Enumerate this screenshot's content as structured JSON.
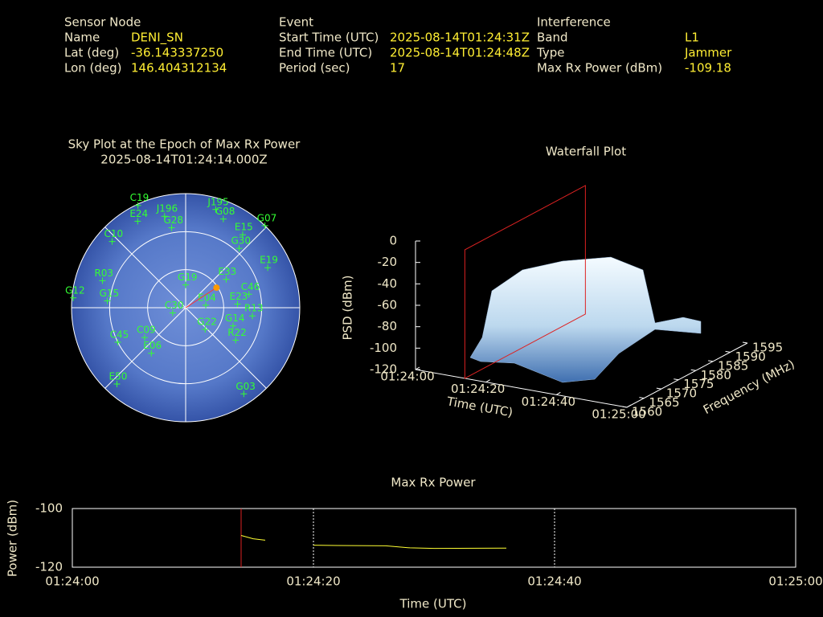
{
  "header": {
    "sensor": {
      "title": "Sensor Node",
      "rows": [
        [
          "Name",
          "DENI_SN"
        ],
        [
          "Lat (deg)",
          "-36.143337250"
        ],
        [
          "Lon (deg)",
          "146.404312134"
        ]
      ]
    },
    "event": {
      "title": "Event",
      "rows": [
        [
          "Start Time (UTC)",
          "2025-08-14T01:24:31Z"
        ],
        [
          "End Time (UTC)",
          "2025-08-14T01:24:48Z"
        ],
        [
          "Period (sec)",
          "17"
        ]
      ]
    },
    "interference": {
      "title": "Interference",
      "rows": [
        [
          "Band",
          "L1"
        ],
        [
          "Type",
          "Jammer"
        ],
        [
          "Max Rx Power (dBm)",
          "-109.18"
        ]
      ]
    }
  },
  "chart_data": [
    {
      "type": "skyplot",
      "title": "Sky Plot at the Epoch of Max Rx Power",
      "subtitle": "2025-08-14T01:24:14.000Z",
      "color": "#33ff33",
      "satellites": [
        {
          "name": "C19",
          "az": 335,
          "el": 1
        },
        {
          "name": "E24",
          "az": 331,
          "el": 12
        },
        {
          "name": "J196",
          "az": 347,
          "el": 16
        },
        {
          "name": "J195",
          "az": 17,
          "el": 9
        },
        {
          "name": "G08",
          "az": 23,
          "el": 14
        },
        {
          "name": "G07",
          "az": 44,
          "el": 0
        },
        {
          "name": "G28",
          "az": 350,
          "el": 26
        },
        {
          "name": "E15",
          "az": 38,
          "el": 17
        },
        {
          "name": "G30",
          "az": 42,
          "el": 27
        },
        {
          "name": "E19",
          "az": 64,
          "el": 18
        },
        {
          "name": "C10",
          "az": 312,
          "el": 12
        },
        {
          "name": "G19",
          "az": 0,
          "el": 72
        },
        {
          "name": "E33",
          "az": 55,
          "el": 51
        },
        {
          "name": "C46",
          "az": 78,
          "el": 39
        },
        {
          "name": "G12",
          "az": 275,
          "el": 1
        },
        {
          "name": "G15",
          "az": 275,
          "el": 28
        },
        {
          "name": "E04",
          "az": 83,
          "el": 74
        },
        {
          "name": "E23",
          "az": 86,
          "el": 49
        },
        {
          "name": "R13",
          "az": 97,
          "el": 37
        },
        {
          "name": "G14",
          "az": 111,
          "el": 50
        },
        {
          "name": "R22",
          "az": 123,
          "el": 43
        },
        {
          "name": "C45",
          "az": 243,
          "el": 30
        },
        {
          "name": "E06",
          "az": 217,
          "el": 45
        },
        {
          "name": "C09",
          "az": 234,
          "el": 50
        },
        {
          "name": "E50",
          "az": 222,
          "el": 9
        },
        {
          "name": "G03",
          "az": 146,
          "el": 8
        },
        {
          "name": "R03",
          "az": 288,
          "el": 21
        },
        {
          "name": "C30",
          "az": 248,
          "el": 79
        },
        {
          "name": "G22",
          "az": 138,
          "el": 67
        }
      ],
      "highlight": {
        "az": 57,
        "el": 61,
        "color": "#ff9900"
      }
    },
    {
      "type": "surface3d",
      "title": "Waterfall Plot",
      "xlabel": "Time (UTC)",
      "ylabel": "Frequency (MHz)",
      "zlabel": "PSD (dBm)",
      "xlim": [
        0,
        60
      ],
      "xticks": [
        {
          "value": 0,
          "label": "01:24:00"
        },
        {
          "value": 20,
          "label": "01:24:20"
        },
        {
          "value": 40,
          "label": "01:24:40"
        },
        {
          "value": 60,
          "label": "01:25:00"
        }
      ],
      "ylim": [
        1560,
        1595
      ],
      "yticks": [
        1560,
        1565,
        1570,
        1575,
        1580,
        1585,
        1590,
        1595
      ],
      "zlim": [
        -120,
        0
      ],
      "zticks": [
        -120,
        -100,
        -80,
        -60,
        -40,
        -20,
        0
      ],
      "marker_x": 14,
      "marker_color": "#dd2222"
    },
    {
      "type": "line",
      "title": "Max Rx Power",
      "xlabel": "Time (UTC)",
      "ylabel": "Power (dBm)",
      "xlim": [
        0,
        60
      ],
      "xticks": [
        {
          "value": 0,
          "label": "01:24:00"
        },
        {
          "value": 20,
          "label": "01:24:20"
        },
        {
          "value": 40,
          "label": "01:24:40"
        },
        {
          "value": 60,
          "label": "01:25:00"
        }
      ],
      "ylim": [
        -120,
        -100
      ],
      "yticks": [
        -120,
        -100
      ],
      "grid": true,
      "x": [
        14,
        15,
        16,
        null,
        20,
        22,
        26,
        28,
        30,
        36
      ],
      "series": [
        {
          "color": "#ffff33",
          "values": [
            -109.18,
            -110.3,
            -110.8,
            null,
            -112.5,
            -112.6,
            -112.7,
            -113.4,
            -113.6,
            -113.5
          ]
        }
      ],
      "marker_x": 14,
      "marker_color": "#dd2222"
    }
  ]
}
